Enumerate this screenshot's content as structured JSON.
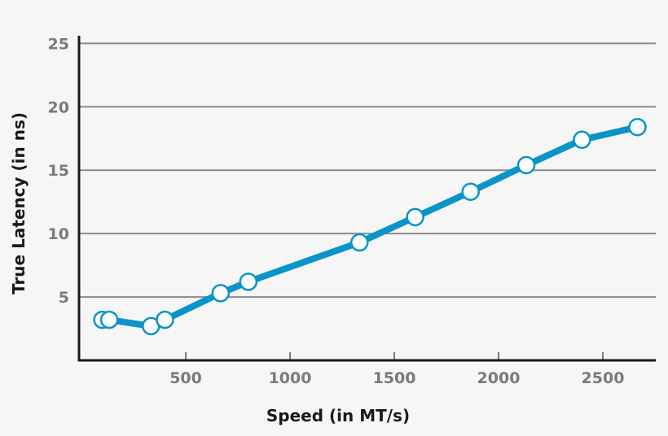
{
  "chart_data": {
    "type": "line",
    "title": "",
    "xlabel": "Speed (in MT/s)",
    "ylabel": "True Latency (in ns)",
    "xlim": [
      -12,
      2754
    ],
    "ylim": [
      0,
      25.6
    ],
    "xticks": [
      500,
      1000,
      1500,
      2000,
      2500
    ],
    "yticks": [
      5,
      10,
      15,
      20,
      25
    ],
    "grid": "horizontal",
    "line_color": "#0a94c8",
    "marker_fill": "#ffffff",
    "grid_color": "#8a8a8a",
    "x": [
      100,
      133,
      333,
      400,
      667,
      800,
      1333,
      1600,
      1866,
      2133,
      2400,
      2666
    ],
    "values": [
      3.2,
      3.2,
      2.7,
      3.2,
      5.3,
      6.2,
      9.3,
      11.3,
      13.3,
      15.4,
      17.4,
      18.4
    ]
  }
}
